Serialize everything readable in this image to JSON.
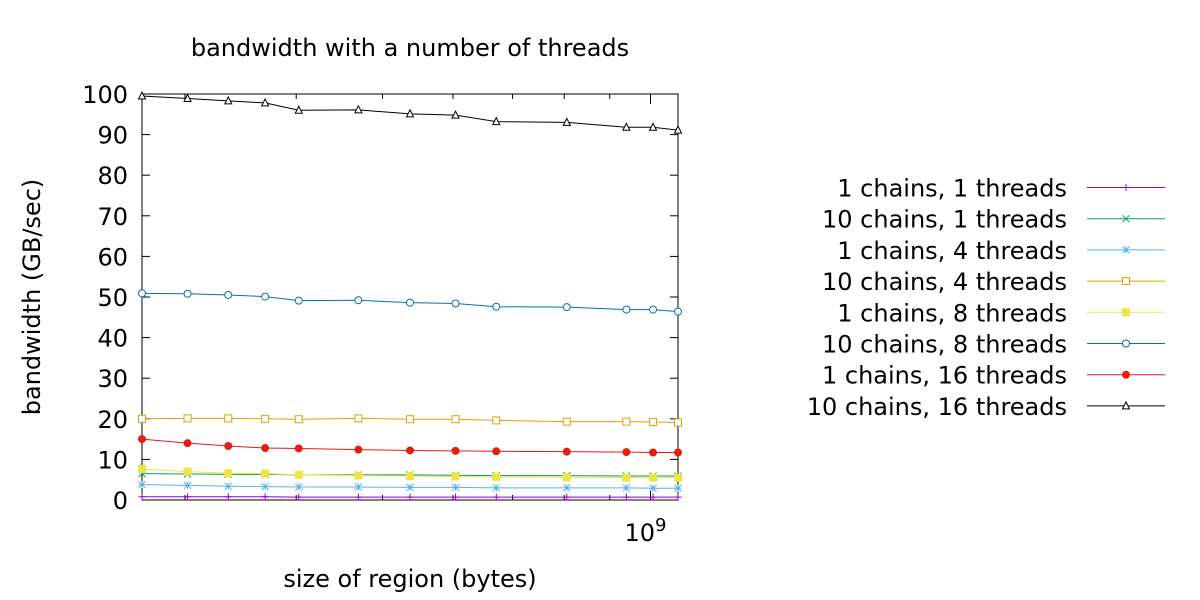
{
  "chart_data": {
    "type": "line",
    "title": "bandwidth with a number of threads",
    "xlabel": "size of region (bytes)",
    "ylabel": "bandwidth (GB/sec)",
    "x_scale": "log",
    "xlim": [
      268435456,
      1073741824
    ],
    "ylim": [
      0,
      100
    ],
    "y_ticks": [
      0,
      10,
      20,
      30,
      40,
      50,
      60,
      70,
      80,
      90,
      100
    ],
    "x_ticks": [
      {
        "value": 1000000000,
        "label": "10",
        "exponent": "9"
      }
    ],
    "grid": false,
    "legend_position": "right",
    "x": [
      268435456,
      301989888,
      335544320,
      369098752,
      402653184,
      469762048,
      536870912,
      603979776,
      671088640,
      805306368,
      939524096,
      1006632960,
      1073741824
    ],
    "series": [
      {
        "name": "1 chains, 1 threads",
        "color": "#9400d3",
        "marker": "plus",
        "values": [
          0.8,
          0.8,
          0.8,
          0.8,
          0.7,
          0.7,
          0.7,
          0.7,
          0.7,
          0.7,
          0.7,
          0.7,
          0.7
        ]
      },
      {
        "name": "10 chains, 1 threads",
        "color": "#009e73",
        "marker": "cross",
        "values": [
          6.5,
          6.4,
          6.3,
          6.3,
          6.2,
          6.2,
          6.2,
          6.1,
          6.0,
          6.0,
          5.9,
          5.9,
          5.9
        ]
      },
      {
        "name": "1 chains, 4 threads",
        "color": "#56b4e9",
        "marker": "star",
        "values": [
          3.8,
          3.6,
          3.4,
          3.3,
          3.2,
          3.2,
          3.1,
          3.1,
          3.0,
          3.0,
          3.0,
          2.9,
          2.9
        ]
      },
      {
        "name": "10 chains, 4 threads",
        "color": "#e69f00",
        "marker": "square-open",
        "values": [
          20.0,
          20.1,
          20.1,
          20.0,
          19.9,
          20.1,
          19.9,
          19.9,
          19.6,
          19.3,
          19.3,
          19.2,
          19.1
        ]
      },
      {
        "name": "1 chains, 8 threads",
        "color": "#f0e442",
        "marker": "square-filled",
        "values": [
          7.6,
          7.0,
          6.6,
          6.5,
          6.2,
          6.0,
          5.9,
          5.8,
          5.7,
          5.6,
          5.5,
          5.5,
          5.5
        ]
      },
      {
        "name": "10 chains, 8 threads",
        "color": "#0072b2",
        "marker": "circle-open",
        "values": [
          50.9,
          50.8,
          50.5,
          50.1,
          49.1,
          49.2,
          48.6,
          48.4,
          47.6,
          47.5,
          46.9,
          46.9,
          46.4
        ]
      },
      {
        "name": "1 chains, 16 threads",
        "color": "#e51e10",
        "marker": "circle-filled",
        "values": [
          15.0,
          14.0,
          13.3,
          12.8,
          12.7,
          12.4,
          12.2,
          12.1,
          12.0,
          11.9,
          11.8,
          11.7,
          11.7
        ]
      },
      {
        "name": "10 chains, 16 threads",
        "color": "#000000",
        "marker": "triangle-open",
        "values": [
          99.5,
          98.9,
          98.3,
          97.8,
          96.0,
          96.1,
          95.1,
          94.8,
          93.2,
          93.0,
          91.8,
          91.8,
          91.1
        ]
      }
    ]
  }
}
